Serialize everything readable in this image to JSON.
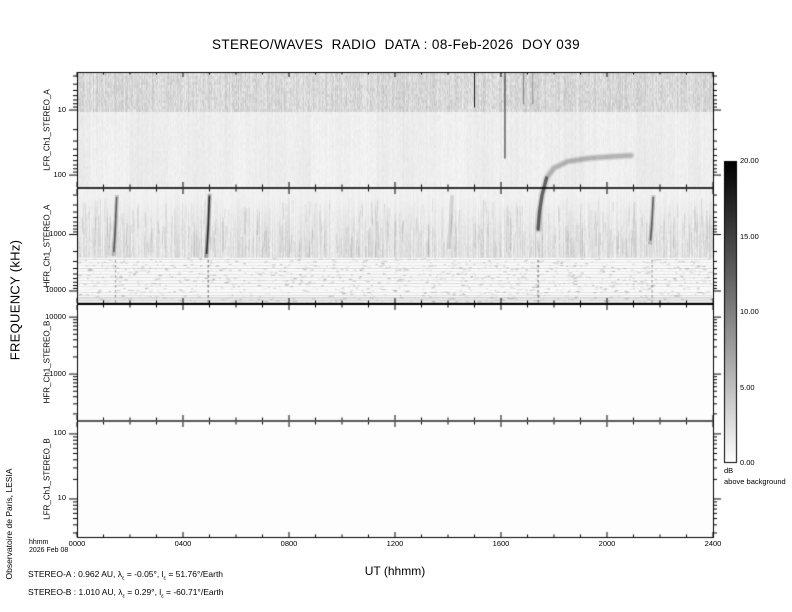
{
  "title": "STEREO/WAVES  RADIO  DATA : 08-Feb-2026  DOY 039",
  "time_format_note": "hhmm",
  "date_note": "2026 Feb 08",
  "credit": "Observatoire de Paris, LESIA",
  "ephemeris": {
    "stereo_a": {
      "spacecraft": "STEREO-A",
      "distance_au": "0.962",
      "lambda_deg": "-0.05",
      "l_deg": "51.76",
      "segments": [
        {
          "t": "STEREO-A : 0.962 AU, λ"
        },
        {
          "sub": "ε"
        },
        {
          "t": " = -0.05°, l"
        },
        {
          "sub": "ε"
        },
        {
          "t": " = 51.76°/Earth"
        }
      ]
    },
    "stereo_b": {
      "spacecraft": "STEREO-B",
      "distance_au": "1.010",
      "lambda_deg": "0.29",
      "l_deg": "-60.71",
      "segments": [
        {
          "t": "STEREO-B : 1.010 AU, λ"
        },
        {
          "sub": "ε"
        },
        {
          "t": " = 0.29°, l"
        },
        {
          "sub": "ε"
        },
        {
          "t": " = -60.71°/Earth"
        }
      ]
    }
  },
  "chart_data": {
    "type": "heatmap",
    "title": "STEREO/WAVES  RADIO  DATA : 08-Feb-2026  DOY 039",
    "x_axis": {
      "label": "UT (hhmm)",
      "tick_labels": [
        "0000",
        "0400",
        "0800",
        "1200",
        "1600",
        "2000",
        "2400"
      ],
      "major_tick_interval_hours": 4,
      "minor_tick_interval_hours": 1,
      "range_hours": [
        0,
        24
      ]
    },
    "y_axis": {
      "label": "FREQUENCY (kHz)",
      "scale": "log"
    },
    "panels": [
      {
        "id": "LFR_Ch1_STEREO_A",
        "receiver": "LFR",
        "spacecraft": "STEREO A",
        "freq_top_khz": 2.6,
        "freq_bottom_khz": 158,
        "has_data": true,
        "tick_labels": [
          {
            "label": "10",
            "freq_khz": 10
          },
          {
            "label": "100",
            "freq_khz": 100
          }
        ]
      },
      {
        "id": "HFR_Ch1_STEREO_A",
        "receiver": "HFR",
        "spacecraft": "STEREO A",
        "freq_top_khz": 150,
        "freq_bottom_khz": 17000,
        "has_data": true,
        "tick_labels": [
          {
            "label": "1000",
            "freq_khz": 1000
          },
          {
            "label": "10000",
            "freq_khz": 10000
          }
        ]
      },
      {
        "id": "HFR_Ch1_STEREO_B",
        "receiver": "HFR",
        "spacecraft": "STEREO B",
        "freq_top_khz": 17000,
        "freq_bottom_khz": 150,
        "has_data": false,
        "tick_labels": [
          {
            "label": "10000",
            "freq_khz": 10000
          },
          {
            "label": "1000",
            "freq_khz": 1000
          }
        ]
      },
      {
        "id": "LFR_Ch1_STEREO_B",
        "receiver": "LFR",
        "spacecraft": "STEREO B",
        "freq_top_khz": 158,
        "freq_bottom_khz": 2.6,
        "has_data": false,
        "tick_labels": [
          {
            "label": "100",
            "freq_khz": 100
          },
          {
            "label": "10",
            "freq_khz": 10
          }
        ]
      }
    ],
    "colorbar": {
      "min": 0,
      "max": 20,
      "tick_labels": [
        "20.00",
        "15.00",
        "10.00",
        "5.00",
        "0.00"
      ],
      "unit": "dB",
      "caption": "above background",
      "min_color": "#ffffff",
      "max_color": "#000000"
    },
    "features": [
      {
        "kind": "type-iii-burst",
        "panel": "HFR_Ch1_STEREO_A",
        "ut_hours": 1.45,
        "freq_khz": [
          200,
          2400
        ],
        "intensity": "moderate"
      },
      {
        "kind": "type-iii-burst",
        "panel": "HFR_Ch1_STEREO_A",
        "ut_hours": 4.95,
        "freq_khz": [
          190,
          2600
        ],
        "intensity": "strong"
      },
      {
        "kind": "type-iii-burst",
        "panel": "HFR_Ch1_STEREO_A",
        "ut_hours": 14.1,
        "freq_khz": [
          200,
          1800
        ],
        "intensity": "faint"
      },
      {
        "kind": "type-iii-burst",
        "panel": "HFR_Ch1_STEREO_A",
        "ut_hours": 21.7,
        "freq_khz": [
          200,
          1500
        ],
        "intensity": "moderate"
      },
      {
        "kind": "drifting-burst",
        "panels": [
          "HFR_Ch1_STEREO_A",
          "LFR_Ch1_STEREO_A"
        ],
        "points_ut_freq": [
          [
            17.4,
            800
          ],
          [
            17.45,
            400
          ],
          [
            17.55,
            200
          ],
          [
            17.72,
            110
          ],
          [
            18.0,
            78
          ],
          [
            18.5,
            62
          ],
          [
            19.3,
            55
          ],
          [
            20.2,
            52
          ],
          [
            20.9,
            50
          ]
        ],
        "intensity": "strong"
      },
      {
        "kind": "interference-line",
        "panel": "LFR_Ch1_STEREO_A",
        "ut_hours": 15.0,
        "freq_khz": [
          2.6,
          9
        ],
        "intensity": "strong"
      },
      {
        "kind": "interference-line",
        "panel": "LFR_Ch1_STEREO_A",
        "ut_hours": 16.15,
        "freq_khz": [
          2.6,
          55
        ],
        "intensity": "strong"
      },
      {
        "kind": "interference-line",
        "panel": "LFR_Ch1_STEREO_A",
        "ut_hours": 16.85,
        "freq_khz": [
          2.6,
          8
        ],
        "intensity": "faint"
      },
      {
        "kind": "interference-line",
        "panel": "LFR_Ch1_STEREO_A",
        "ut_hours": 17.2,
        "freq_khz": [
          2.6,
          8
        ],
        "intensity": "faint"
      }
    ],
    "interference_band": {
      "panel": "HFR_Ch1_STEREO_A",
      "freq_khz": [
        2600,
        17000
      ],
      "pattern": "horizontal stripes"
    }
  }
}
